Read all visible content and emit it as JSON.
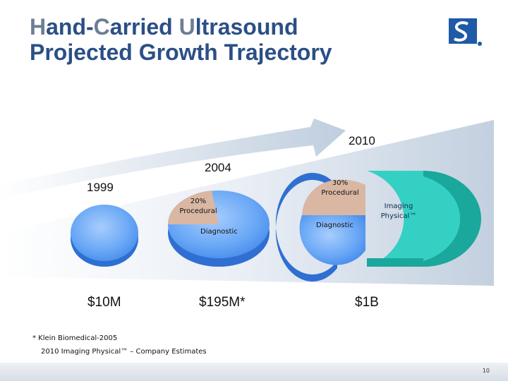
{
  "slide": {
    "title_line1": [
      "H",
      "and-",
      "C",
      "arried ",
      "U",
      "ltrasound"
    ],
    "title_line2": "Projected Growth Trajectory",
    "logo_icon": "company-logo",
    "years": {
      "y1999": "1999",
      "y2004": "2004",
      "y2010": "2010"
    },
    "amounts": {
      "a1999": "$10M",
      "a2004": "$195M*",
      "a2010": "$1B"
    },
    "pie2004": {
      "procedural": "20% Procedural",
      "diagnostic": "Diagnostic"
    },
    "pie2010": {
      "procedural": "30% Procedural",
      "diagnostic": "Diagnostic",
      "imaging": "Imaging Physical™"
    },
    "footnote1": "* Klein Biomedical-2005",
    "footnote2": "2010 Imaging Physical™ – Company Estimates",
    "page_number": "10",
    "colors": {
      "title": "#2b4f86",
      "accent": "#6d7d95",
      "diagnostic": "#5b9df5",
      "procedural": "#d9b7a3",
      "imaging": "#35d0c4"
    }
  }
}
